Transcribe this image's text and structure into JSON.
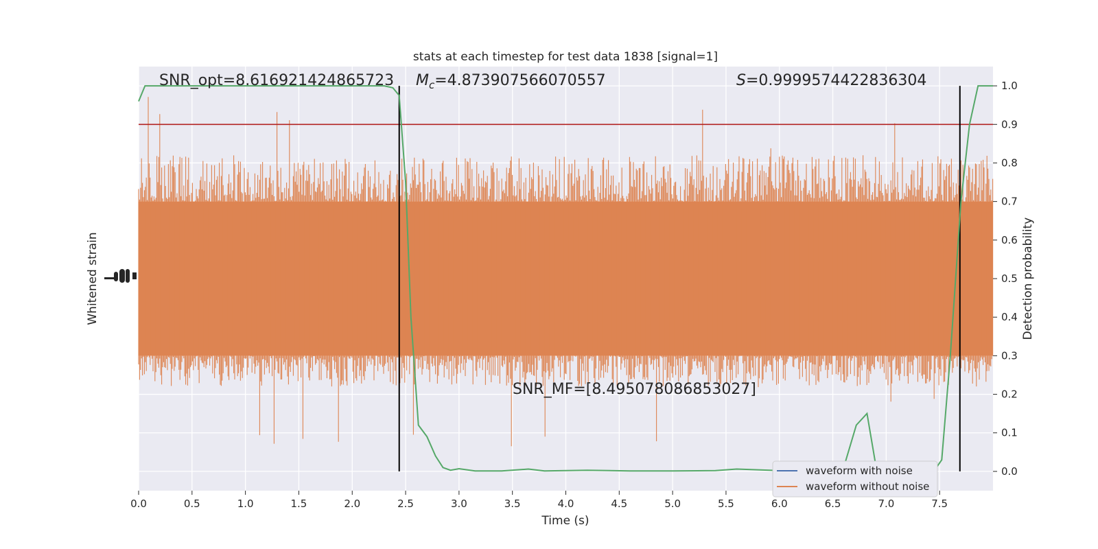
{
  "chart_data": {
    "type": "line",
    "title": "stats at each timestep for test data 1838 [signal=1]",
    "xlabel": "Time (s)",
    "ylabel_left": "Whitened strain",
    "ylabel_right": "Detection probability",
    "xlim": [
      0.0,
      8.0
    ],
    "ylim_right": [
      -0.05,
      1.05
    ],
    "xticks": [
      "0.0",
      "0.5",
      "1.0",
      "1.5",
      "2.0",
      "2.5",
      "3.0",
      "3.5",
      "4.0",
      "4.5",
      "5.0",
      "5.5",
      "6.0",
      "6.5",
      "7.0",
      "7.5"
    ],
    "yticks_right": [
      "0.0",
      "0.1",
      "0.2",
      "0.3",
      "0.4",
      "0.5",
      "0.6",
      "0.7",
      "0.8",
      "0.9",
      "1.0"
    ],
    "grid": true,
    "legend_position": "lower-right",
    "annotations": {
      "snr_opt": "SNR_opt=8.616921424865723",
      "mc_symbol": "M",
      "mc_sub": "c",
      "mc_value": "=4.873907566070557",
      "s_symbol": "S",
      "s_value": "=0.9999574422836304",
      "snr_mf": "SNR_MF=[8.495078086853027]"
    },
    "threshold": {
      "y": 0.9,
      "color": "#b22222"
    },
    "vertical_lines": [
      2.44,
      7.69
    ],
    "series": [
      {
        "name": "waveform with noise",
        "color": "#4c72b0"
      },
      {
        "name": "waveform without noise",
        "color": "#dd8452"
      }
    ],
    "detection_probability": {
      "color": "#55a868",
      "x": [
        0.0,
        0.06,
        0.5,
        1.0,
        1.5,
        2.0,
        2.3,
        2.38,
        2.44,
        2.5,
        2.55,
        2.62,
        2.7,
        2.78,
        2.85,
        2.92,
        3.0,
        3.15,
        3.4,
        3.65,
        3.8,
        4.2,
        4.6,
        5.0,
        5.4,
        5.6,
        6.0,
        6.4,
        6.6,
        6.72,
        6.82,
        6.9,
        7.0,
        7.2,
        7.45,
        7.52,
        7.6,
        7.7,
        7.78,
        7.86,
        7.92,
        8.0
      ],
      "y": [
        0.96,
        1.0,
        1.0,
        1.0,
        1.0,
        1.0,
        1.0,
        0.995,
        0.975,
        0.75,
        0.4,
        0.12,
        0.09,
        0.04,
        0.01,
        0.003,
        0.007,
        0.001,
        0.001,
        0.006,
        0.001,
        0.003,
        0.001,
        0.001,
        0.002,
        0.006,
        0.002,
        0.004,
        0.008,
        0.12,
        0.15,
        0.02,
        0.004,
        0.003,
        0.002,
        0.03,
        0.3,
        0.7,
        0.9,
        1.0,
        1.0,
        1.0
      ]
    },
    "strain_envelope": {
      "core_low": 0.3,
      "core_high": 0.7,
      "spike_max": 0.98,
      "spike_min": 0.06,
      "upper_edge": 0.82,
      "lower_edge": 0.22,
      "color": "#dd8452"
    }
  }
}
